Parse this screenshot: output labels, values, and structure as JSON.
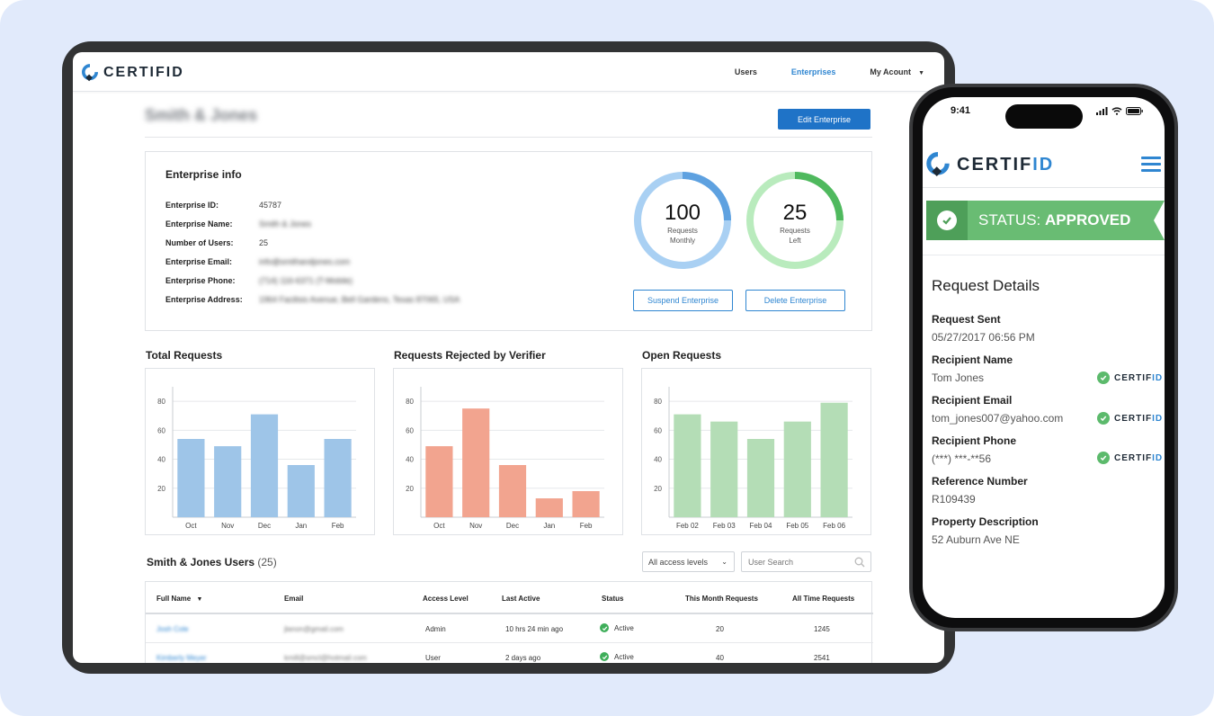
{
  "app": {
    "brand": "CERTIFID",
    "brand_id_part": "ID",
    "brand_prefix": "CERTIF"
  },
  "nav": {
    "users": "Users",
    "enterprises": "Enterprises",
    "account": "My Acount"
  },
  "enterprise": {
    "name": "Smith & Jones",
    "edit_label": "Edit Enterprise",
    "info_title": "Enterprise info",
    "fields": [
      {
        "label": "Enterprise ID:",
        "value": "45787"
      },
      {
        "label": "Enterprise Name:",
        "value": "Smith & Jones"
      },
      {
        "label": "Number of Users:",
        "value": "25"
      },
      {
        "label": "Enterprise Email:",
        "value": "info@smithandjones.com"
      },
      {
        "label": "Enterprise Phone:",
        "value": "(714) 116-6371 (T-Mobile)"
      },
      {
        "label": "Enterprise Address:",
        "value": "1964 Facilisis Avenue, Bell Gardens, Texas 87065, USA"
      }
    ],
    "requests_monthly": {
      "value": "100",
      "line1": "Requests",
      "line2": "Monthly",
      "fill": 0.25
    },
    "requests_left": {
      "value": "25",
      "line1": "Requests",
      "line2": "Left",
      "fill": 0.25
    },
    "suspend_label": "Suspend Enterprise",
    "delete_label": "Delete Enterprise"
  },
  "colors": {
    "accent": "#1f73c7",
    "bar_blue": "#9ec5e8",
    "bar_red": "#f2a48f",
    "bar_green": "#b4ddb6",
    "status_green": "#3fae5a",
    "banner_green": "#69bc73"
  },
  "chart_data": [
    {
      "type": "bar",
      "title": "Total Requests",
      "categories": [
        "Oct",
        "Nov",
        "Dec",
        "Jan",
        "Feb"
      ],
      "values": [
        54,
        49,
        71,
        36,
        54
      ],
      "ylim": [
        0,
        90
      ],
      "yticks": [
        20,
        40,
        60,
        80
      ],
      "color": "#9ec5e8"
    },
    {
      "type": "bar",
      "title": "Requests Rejected by Verifier",
      "categories": [
        "Oct",
        "Nov",
        "Dec",
        "Jan",
        "Feb"
      ],
      "values": [
        49,
        75,
        36,
        13,
        18
      ],
      "ylim": [
        0,
        90
      ],
      "yticks": [
        20,
        40,
        60,
        80
      ],
      "color": "#f2a48f"
    },
    {
      "type": "bar",
      "title": "Open Requests",
      "categories": [
        "Feb 02",
        "Feb 03",
        "Feb 04",
        "Feb 05",
        "Feb 06"
      ],
      "values": [
        71,
        66,
        54,
        66,
        79
      ],
      "ylim": [
        0,
        90
      ],
      "yticks": [
        20,
        40,
        60,
        80
      ],
      "color": "#b4ddb6"
    }
  ],
  "users": {
    "title": "Smith & Jones Users",
    "count": "(25)",
    "access_select": "All access levels",
    "search_placeholder": "User Search",
    "columns": [
      "Full Name",
      "Email",
      "Access Level",
      "Last Active",
      "Status",
      "This Month Requests",
      "All Time Requests"
    ],
    "rows": [
      {
        "name": "Josh Cole",
        "email": "jlanon@gmail.com",
        "access": "Admin",
        "last_active": "10 hrs 24 min ago",
        "status": "Active",
        "month": "20",
        "all_time": "1245"
      },
      {
        "name": "Kimberly Meyer",
        "email": "kmill@smcl@hotmail.com",
        "access": "User",
        "last_active": "2 days ago",
        "status": "Active",
        "month": "40",
        "all_time": "2541"
      }
    ]
  },
  "phone": {
    "time": "9:41",
    "status_label": "STATUS:",
    "status_value": "APPROVED",
    "details_title": "Request Details",
    "details": [
      {
        "label": "Request Sent",
        "value": "05/27/2017 06:56 PM",
        "verified": false
      },
      {
        "label": "Recipient Name",
        "value": "Tom Jones",
        "verified": true
      },
      {
        "label": "Recipient Email",
        "value": "tom_jones007@yahoo.com",
        "verified": true
      },
      {
        "label": "Recipient Phone",
        "value": "(***) ***-**56",
        "verified": true
      },
      {
        "label": "Reference Number",
        "value": "R109439",
        "verified": false
      },
      {
        "label": "Property Description",
        "value": "52 Auburn Ave NE",
        "verified": false
      }
    ]
  }
}
